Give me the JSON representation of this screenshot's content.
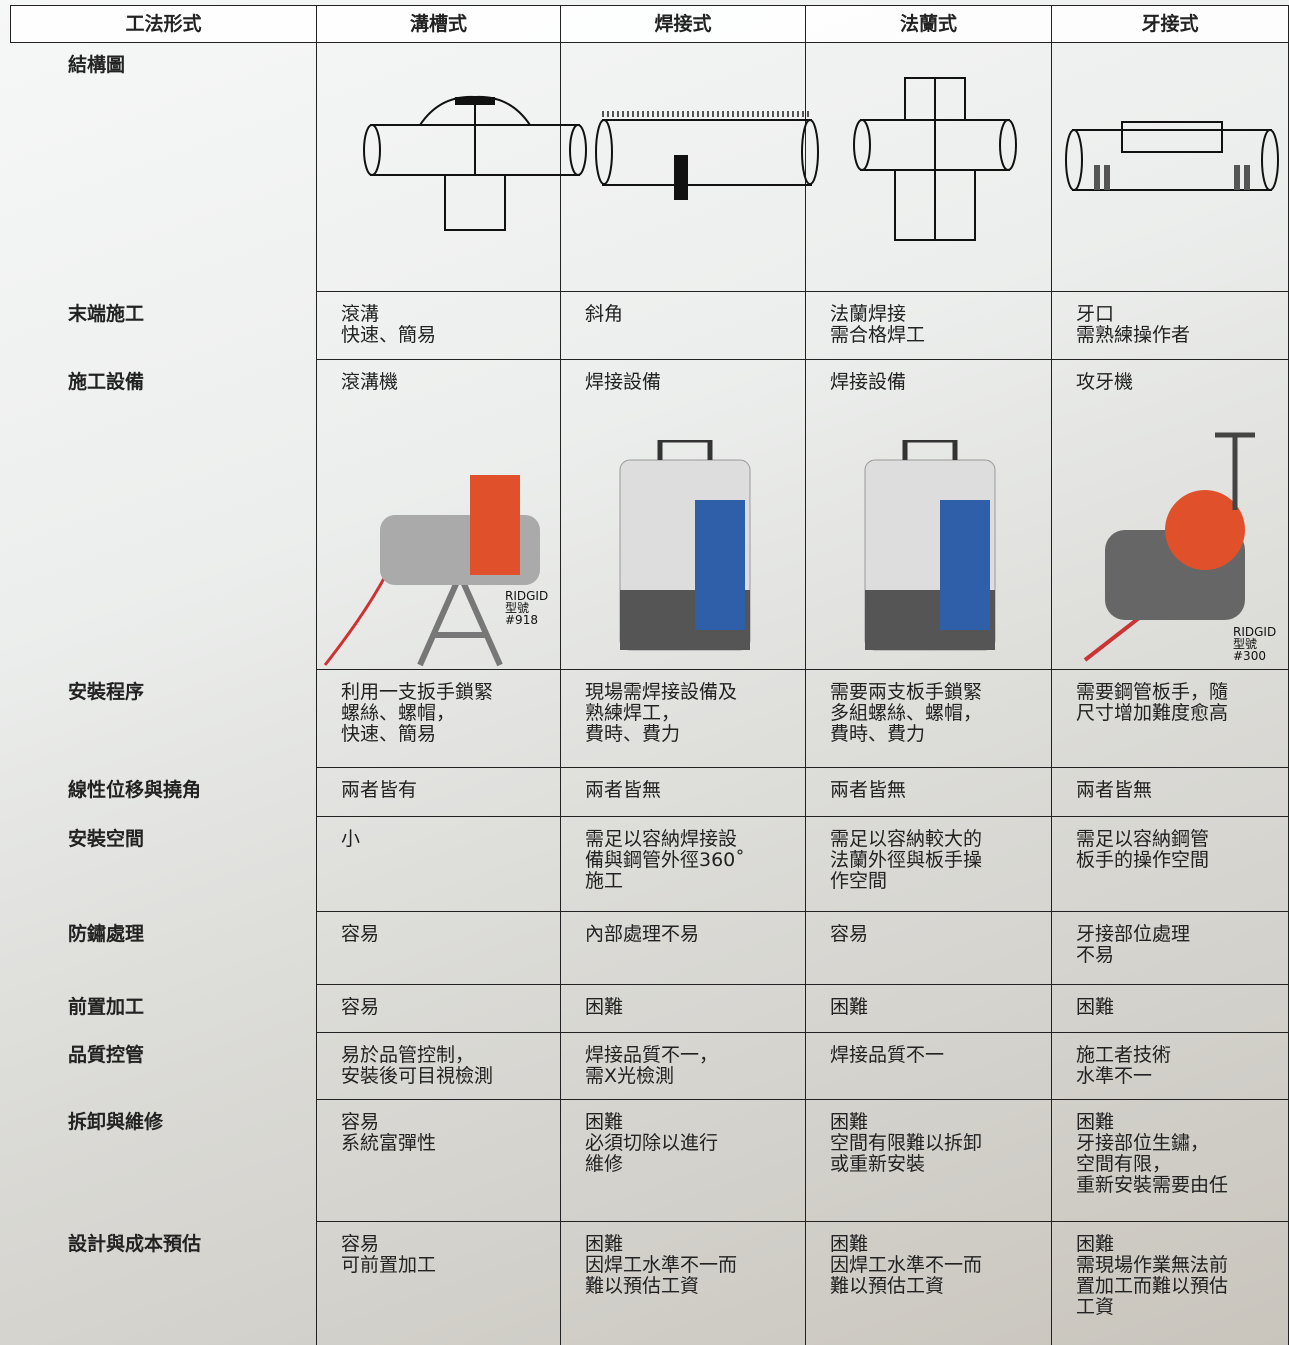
{
  "header": [
    "工法形式",
    "溝槽式",
    "焊接式",
    "法蘭式",
    "牙接式"
  ],
  "rows": [
    {
      "label": "結構圖"
    },
    {
      "label": "末端施工",
      "cells": [
        "滾溝\n快速、簡易",
        "斜角",
        "法蘭焊接\n需合格焊工",
        "牙口\n需熟練操作者"
      ]
    },
    {
      "label": "施工設備",
      "cells": [
        "滾溝機",
        "焊接設備",
        "焊接設備",
        "攻牙機"
      ]
    },
    {
      "label": "安裝程序",
      "cells": [
        "利用一支扳手鎖緊\n螺絲、螺帽，\n快速、簡易",
        "現場需焊接設備及\n熟練焊工，\n費時、費力",
        "需要兩支板手鎖緊\n多組螺絲、螺帽，\n費時、費力",
        "需要鋼管板手，隨\n尺寸增加難度愈高"
      ]
    },
    {
      "label": "線性位移與撓角",
      "cells": [
        "兩者皆有",
        "兩者皆無",
        "兩者皆無",
        "兩者皆無"
      ]
    },
    {
      "label": "安裝空間",
      "cells": [
        "小",
        "需足以容納焊接設\n備與鋼管外徑360˚\n施工",
        "需足以容納較大的\n法蘭外徑與板手操\n作空間",
        "需足以容納鋼管\n板手的操作空間"
      ]
    },
    {
      "label": "防鏽處理",
      "cells": [
        "容易",
        "內部處理不易",
        "容易",
        "牙接部位處理\n不易"
      ]
    },
    {
      "label": "前置加工",
      "cells": [
        "容易",
        "困難",
        "困難",
        "困難"
      ]
    },
    {
      "label": "品質控管",
      "cells": [
        "易於品管控制，\n安裝後可目視檢測",
        "焊接品質不一，\n需X光檢測",
        "焊接品質不一",
        "施工者技術\n水準不一"
      ]
    },
    {
      "label": "拆卸與維修",
      "cells": [
        "容易\n系統富彈性",
        "困難\n必須切除以進行\n維修",
        "困難\n空間有限難以拆卸\n或重新安裝",
        "困難\n牙接部位生鏽，\n空間有限，\n重新安裝需要由任"
      ]
    },
    {
      "label": "設計與成本預估",
      "cells": [
        "容易\n可前置加工",
        "困難\n因焊工水準不一而\n難以預估工資",
        "困難\n因焊工水準不一而\n難以預估工資",
        "困難\n需現場作業無法前\n置加工而難以預估\n工資"
      ]
    }
  ],
  "image_captions": {
    "grooved_machine": "RIDGID\n型號\n#918",
    "threading_machine": "RIDGID\n型號\n#300"
  }
}
